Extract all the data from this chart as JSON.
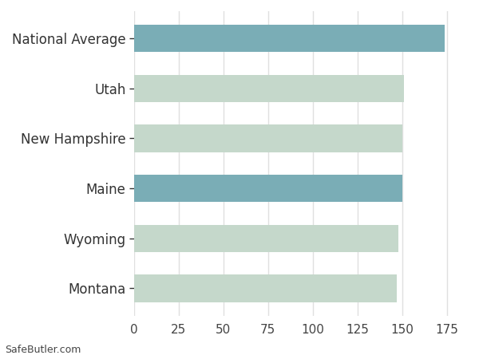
{
  "categories": [
    "Montana",
    "Wyoming",
    "Maine",
    "New Hampshire",
    "Utah",
    "National Average"
  ],
  "values": [
    147,
    148,
    150,
    150,
    151,
    174
  ],
  "bar_colors": [
    "#c5d8cb",
    "#c5d8cb",
    "#7aadb6",
    "#c5d8cb",
    "#c5d8cb",
    "#7aadb6"
  ],
  "background_color": "#ffffff",
  "plot_bg_color": "#ffffff",
  "xlim": [
    0,
    185
  ],
  "xticks": [
    0,
    25,
    50,
    75,
    100,
    125,
    150,
    175
  ],
  "grid_color": "#e0e0e0",
  "bar_height": 0.55,
  "label_fontsize": 12,
  "tick_fontsize": 11,
  "watermark": "SafeButler.com",
  "watermark_fontsize": 9
}
